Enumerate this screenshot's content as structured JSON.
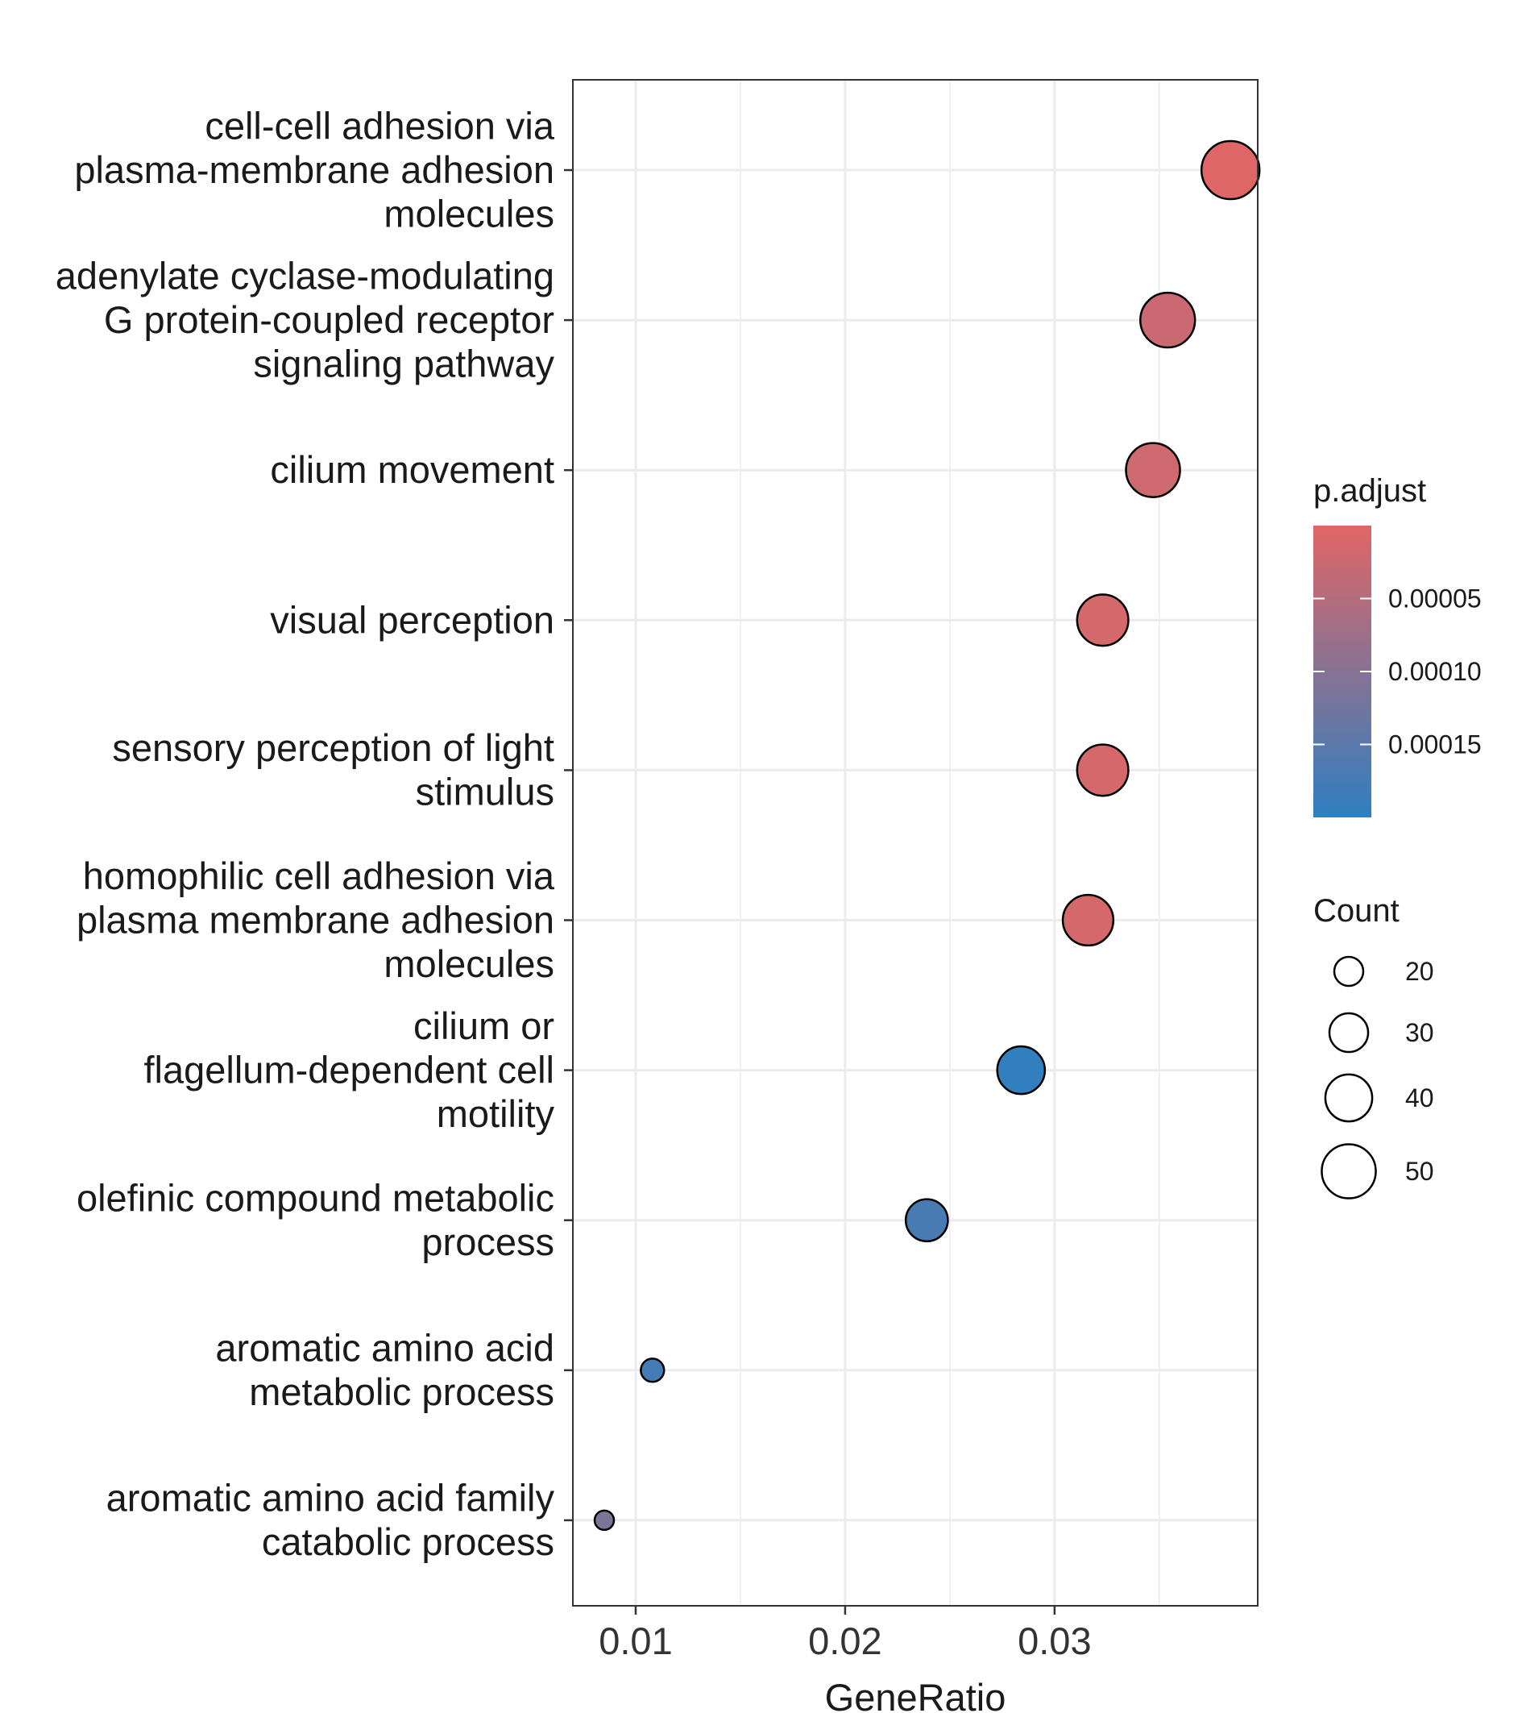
{
  "chart_data": {
    "type": "scatter",
    "xlabel": "GeneRatio",
    "ylabel": "",
    "xlim": [
      0.007,
      0.0397
    ],
    "x_ticks": [
      0.01,
      0.02,
      0.03
    ],
    "x_tick_labels": [
      "0.01",
      "0.02",
      "0.03"
    ],
    "grid": true,
    "legend_position": "right",
    "categories": [
      [
        "cell-cell adhesion via",
        "plasma-membrane adhesion",
        "molecules"
      ],
      [
        "adenylate cyclase-modulating",
        "G protein-coupled receptor",
        "signaling pathway"
      ],
      [
        "cilium movement"
      ],
      [
        "visual perception"
      ],
      [
        "sensory perception of light",
        "stimulus"
      ],
      [
        "homophilic cell adhesion via",
        "plasma membrane adhesion",
        "molecules"
      ],
      [
        "cilium or",
        "flagellum-dependent cell",
        "motility"
      ],
      [
        "olefinic compound metabolic",
        "process"
      ],
      [
        "aromatic amino acid",
        "metabolic process"
      ],
      [
        "aromatic amino acid family",
        "catabolic process"
      ]
    ],
    "points": [
      {
        "gene_ratio": 0.0384,
        "count": 56,
        "p_adjust": 2e-06
      },
      {
        "gene_ratio": 0.0354,
        "count": 51,
        "p_adjust": 2.5e-05
      },
      {
        "gene_ratio": 0.0347,
        "count": 50,
        "p_adjust": 2e-05
      },
      {
        "gene_ratio": 0.0323,
        "count": 46,
        "p_adjust": 1.2e-05
      },
      {
        "gene_ratio": 0.0323,
        "count": 46,
        "p_adjust": 1.2e-05
      },
      {
        "gene_ratio": 0.0316,
        "count": 45,
        "p_adjust": 1.2e-05
      },
      {
        "gene_ratio": 0.0284,
        "count": 41,
        "p_adjust": 0.000196
      },
      {
        "gene_ratio": 0.0239,
        "count": 34,
        "p_adjust": 0.00017
      },
      {
        "gene_ratio": 0.0108,
        "count": 15,
        "p_adjust": 0.000175
      },
      {
        "gene_ratio": 0.0085,
        "count": 12,
        "p_adjust": 0.00011
      }
    ],
    "color_legend": {
      "title": "p.adjust",
      "ticks": [
        5e-05,
        0.0001,
        0.00015
      ],
      "tick_labels": [
        "0.00005",
        "0.00010",
        "0.00015"
      ],
      "range": [
        0.0,
        0.0002
      ],
      "low_color": "#e06666",
      "high_color": "#2e7fc1"
    },
    "size_legend": {
      "title": "Count",
      "values": [
        20,
        30,
        40,
        50
      ],
      "labels": [
        "20",
        "30",
        "40",
        "50"
      ]
    }
  }
}
